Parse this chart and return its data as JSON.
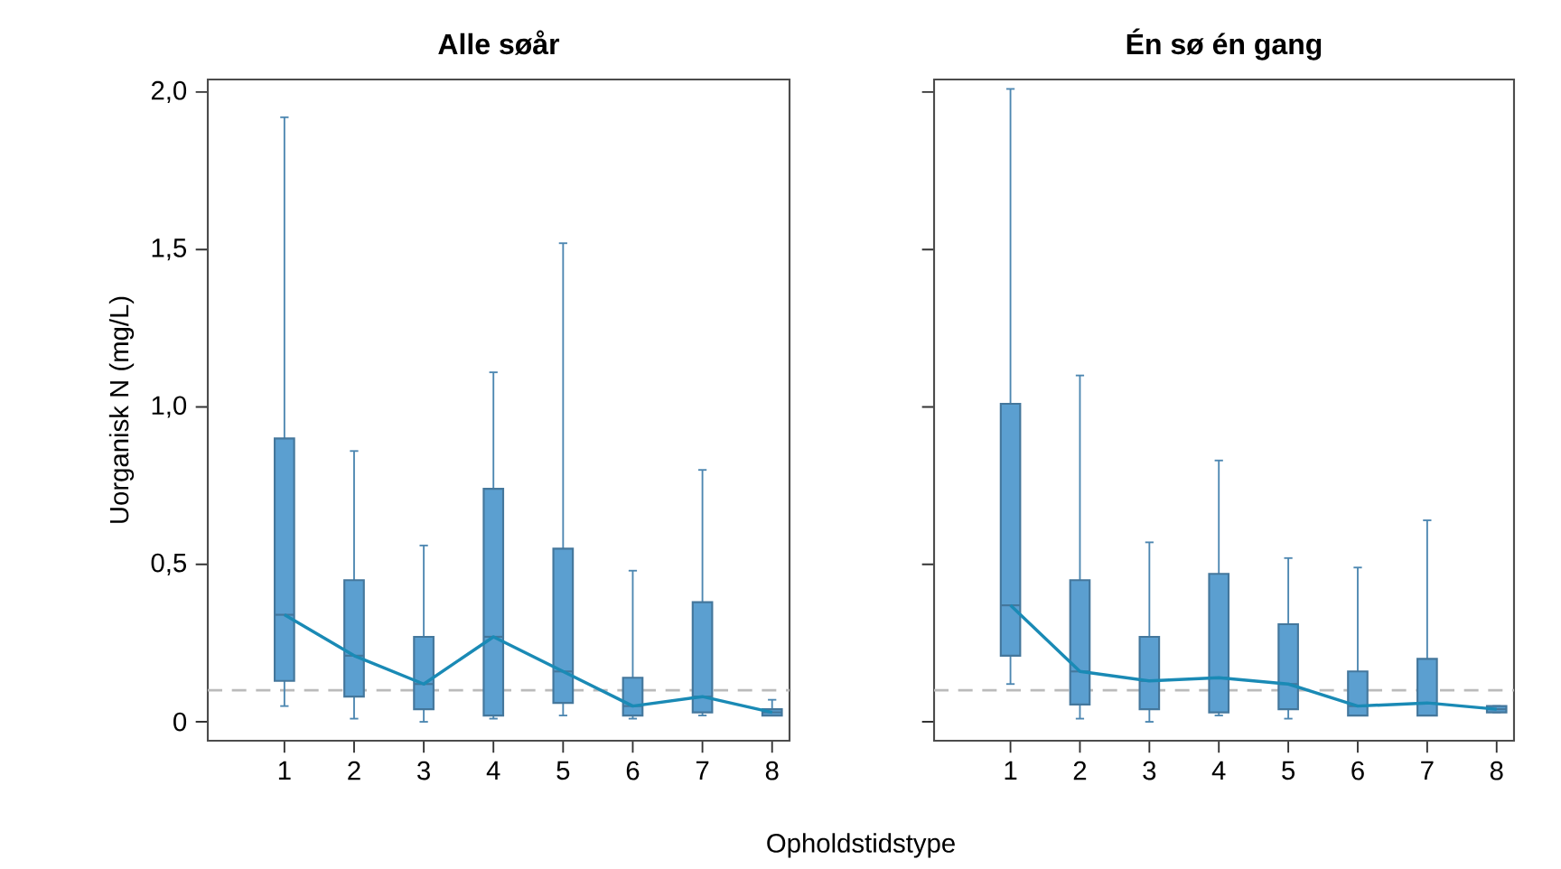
{
  "chart_data": [
    {
      "type": "box",
      "title": "Alle søår",
      "ylabel": "Uorganisk N (mg/L)",
      "xlabel": "Opholdstidstype",
      "categories": [
        "1",
        "2",
        "3",
        "4",
        "5",
        "6",
        "7",
        "8"
      ],
      "ylim": [
        -0.06,
        2.04
      ],
      "yticks": [
        0,
        {
          "value": 0.5,
          "label": "0,5"
        },
        {
          "value": 1.0,
          "label": "1,0"
        },
        {
          "value": 1.5,
          "label": "1,5"
        },
        {
          "value": 2.0,
          "label": "2,0"
        }
      ],
      "series": [
        {
          "color": "#5b9fd0",
          "boxes": [
            {
              "low": 0.05,
              "q1": 0.13,
              "median": 0.34,
              "q3": 0.9,
              "high": 1.92
            },
            {
              "low": 0.01,
              "q1": 0.08,
              "median": 0.21,
              "q3": 0.45,
              "high": 0.86
            },
            {
              "low": 0.0,
              "q1": 0.04,
              "median": 0.12,
              "q3": 0.27,
              "high": 0.56
            },
            {
              "low": 0.01,
              "q1": 0.02,
              "median": 0.27,
              "q3": 0.74,
              "high": 1.11
            },
            {
              "low": 0.02,
              "q1": 0.06,
              "median": 0.16,
              "q3": 0.55,
              "high": 1.52
            },
            {
              "low": 0.01,
              "q1": 0.02,
              "median": 0.05,
              "q3": 0.14,
              "high": 0.48
            },
            {
              "low": 0.02,
              "q1": 0.03,
              "median": 0.08,
              "q3": 0.38,
              "high": 0.8
            },
            {
              "low": 0.02,
              "q1": 0.02,
              "median": 0.03,
              "q3": 0.04,
              "high": 0.07
            }
          ]
        },
        {
          "type": "line",
          "color": "#1a8ab5",
          "values": [
            0.34,
            0.21,
            0.12,
            0.27,
            0.16,
            0.05,
            0.08,
            0.03
          ]
        }
      ],
      "ref_lines": [
        {
          "axis": "y",
          "value": 0.1,
          "color": "#bbbbbb",
          "line_style": "dashed"
        }
      ]
    },
    {
      "type": "box",
      "title": "Én sø én gang",
      "categories": [
        "1",
        "2",
        "3",
        "4",
        "5",
        "6",
        "7",
        "8"
      ],
      "ylim": [
        -0.06,
        2.04
      ],
      "yticks": [
        {
          "value": 0,
          "label": null
        },
        {
          "value": 0.5,
          "label": null
        },
        {
          "value": 1.0,
          "label": null
        },
        {
          "value": 1.5,
          "label": null
        },
        {
          "value": 2.0,
          "label": null
        }
      ],
      "tick_labels": "x",
      "series": [
        {
          "color": "#5b9fd0",
          "boxes": [
            {
              "low": 0.12,
              "q1": 0.21,
              "median": 0.37,
              "q3": 1.01,
              "high": 2.01
            },
            {
              "low": 0.01,
              "q1": 0.055,
              "median": 0.16,
              "q3": 0.45,
              "high": 1.1
            },
            {
              "low": 0.0,
              "q1": 0.04,
              "median": 0.13,
              "q3": 0.27,
              "high": 0.57
            },
            {
              "low": 0.02,
              "q1": 0.03,
              "median": 0.14,
              "q3": 0.47,
              "high": 0.83
            },
            {
              "low": 0.01,
              "q1": 0.04,
              "median": 0.12,
              "q3": 0.31,
              "high": 0.52
            },
            {
              "low": 0.02,
              "q1": 0.02,
              "median": 0.05,
              "q3": 0.16,
              "high": 0.49
            },
            {
              "low": 0.02,
              "q1": 0.02,
              "median": 0.06,
              "q3": 0.2,
              "high": 0.64
            },
            {
              "low": 0.03,
              "q1": 0.03,
              "median": 0.04,
              "q3": 0.05,
              "high": 0.05
            }
          ]
        },
        {
          "type": "line",
          "color": "#1a8ab5",
          "values": [
            0.37,
            0.16,
            0.13,
            0.14,
            0.12,
            0.05,
            0.06,
            0.04
          ]
        }
      ],
      "ref_lines": [
        {
          "axis": "y",
          "value": 0.1,
          "color": "#bbbbbb",
          "line_style": "dashed"
        }
      ]
    }
  ]
}
